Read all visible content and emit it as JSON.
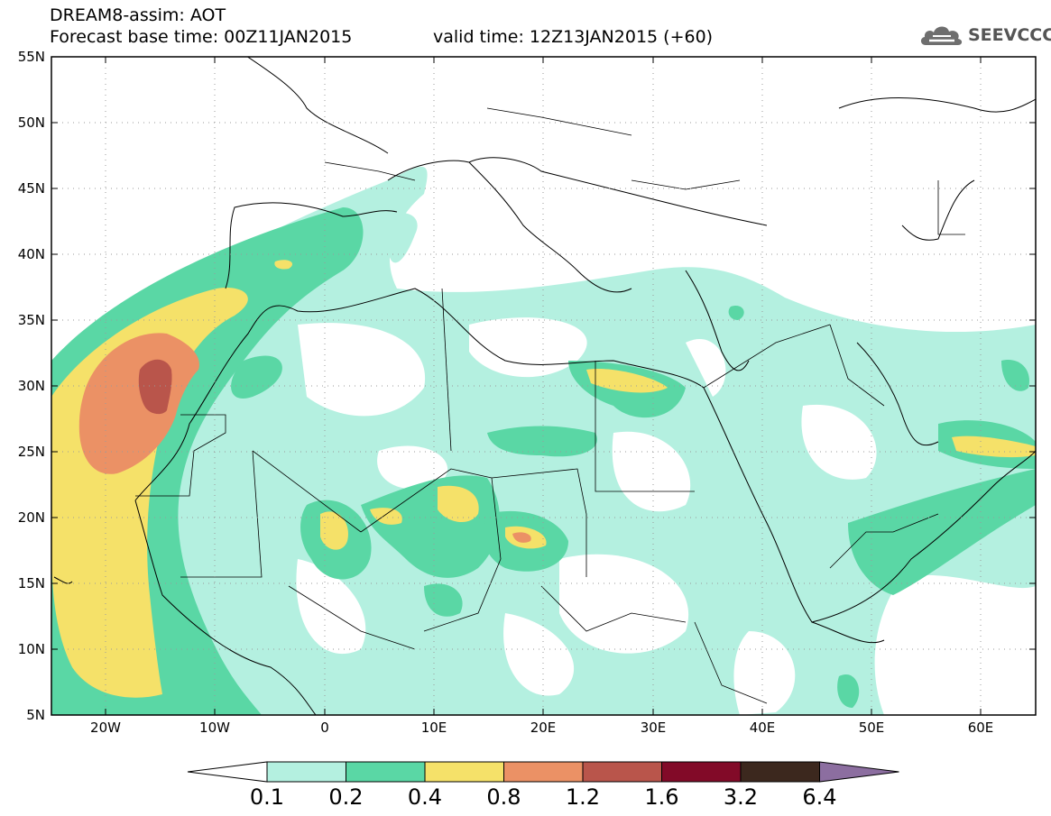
{
  "header": {
    "line1": "DREAM8-assim: AOT",
    "line2": "Forecast base time: 00Z11JAN2015",
    "line3": "valid time: 12Z13JAN2015 (+60)"
  },
  "logo": {
    "text": "SEEVCCC",
    "icon": "cloud-icon"
  },
  "map": {
    "lon_range": [
      -25,
      65
    ],
    "lat_range": [
      5,
      55
    ],
    "lat_ticks": [
      "55N",
      "50N",
      "45N",
      "40N",
      "35N",
      "30N",
      "25N",
      "20N",
      "15N",
      "10N",
      "5N"
    ],
    "lon_ticks": [
      "20W",
      "10W",
      "0",
      "10E",
      "20E",
      "30E",
      "40E",
      "50E",
      "60E"
    ],
    "grid": "dotted"
  },
  "colorbar": {
    "levels": [
      "0.1",
      "0.2",
      "0.4",
      "0.8",
      "1.2",
      "1.6",
      "3.2",
      "6.4"
    ],
    "colors": [
      "#ffffff",
      "#b4f0e0",
      "#5ad7a5",
      "#f5e169",
      "#eb9165",
      "#b9554b",
      "#820a28",
      "#3c281e",
      "#8c6ea0"
    ]
  }
}
